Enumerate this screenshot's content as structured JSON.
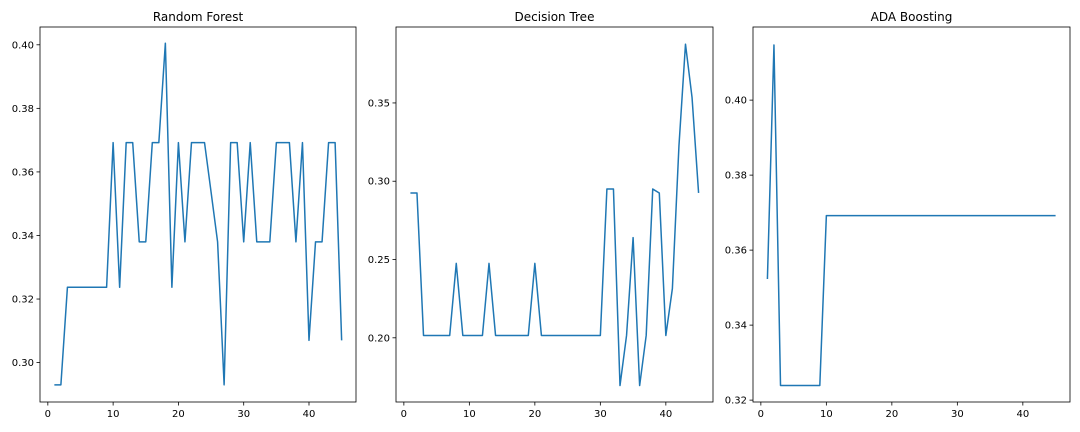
{
  "chart_data": [
    {
      "type": "line",
      "title": "Random Forest",
      "xlabel": "",
      "ylabel": "",
      "xlim": [
        -1.2,
        47.2
      ],
      "ylim": [
        0.2876,
        0.4056
      ],
      "xticks": [
        0,
        10,
        20,
        30,
        40
      ],
      "yticks": [
        0.3,
        0.32,
        0.34,
        0.36,
        0.38,
        0.4
      ],
      "ytick_labels": [
        "0.30",
        "0.32",
        "0.34",
        "0.36",
        "0.38",
        "0.40"
      ],
      "grid": false,
      "color": "#1f77b4",
      "x": [
        1,
        2,
        3,
        4,
        5,
        6,
        7,
        8,
        9,
        10,
        11,
        12,
        13,
        14,
        15,
        16,
        17,
        18,
        19,
        20,
        21,
        22,
        23,
        24,
        25,
        26,
        27,
        28,
        29,
        30,
        31,
        32,
        33,
        34,
        35,
        36,
        37,
        38,
        39,
        40,
        41,
        42,
        43,
        44,
        45
      ],
      "y": [
        0.293,
        0.293,
        0.3237,
        0.3237,
        0.3237,
        0.3237,
        0.3237,
        0.3237,
        0.3237,
        0.3692,
        0.3237,
        0.3692,
        0.3692,
        0.338,
        0.338,
        0.3692,
        0.3692,
        0.4005,
        0.3237,
        0.3692,
        0.338,
        0.3692,
        0.3692,
        0.3692,
        0.3537,
        0.338,
        0.293,
        0.3692,
        0.3692,
        0.338,
        0.3692,
        0.338,
        0.338,
        0.338,
        0.3692,
        0.3692,
        0.3692,
        0.338,
        0.3692,
        0.307,
        0.338,
        0.338,
        0.3692,
        0.3692,
        0.307
      ]
    },
    {
      "type": "line",
      "title": "Decision Tree",
      "xlabel": "",
      "ylabel": "",
      "xlim": [
        -1.2,
        47.2
      ],
      "ylim": [
        0.159,
        0.3985
      ],
      "xticks": [
        0,
        10,
        20,
        30,
        40
      ],
      "yticks": [
        0.2,
        0.25,
        0.3,
        0.35
      ],
      "ytick_labels": [
        "0.20",
        "0.25",
        "0.30",
        "0.35"
      ],
      "grid": false,
      "color": "#1f77b4",
      "x": [
        1,
        2,
        3,
        4,
        5,
        6,
        7,
        8,
        9,
        10,
        11,
        12,
        13,
        14,
        15,
        16,
        17,
        18,
        19,
        20,
        21,
        22,
        23,
        24,
        25,
        26,
        27,
        28,
        29,
        30,
        31,
        32,
        33,
        34,
        35,
        36,
        37,
        38,
        39,
        40,
        41,
        42,
        43,
        44,
        45
      ],
      "y": [
        0.2925,
        0.2925,
        0.2015,
        0.2015,
        0.2015,
        0.2015,
        0.2015,
        0.2475,
        0.2015,
        0.2015,
        0.2015,
        0.2015,
        0.2475,
        0.2015,
        0.2015,
        0.2015,
        0.2015,
        0.2015,
        0.2015,
        0.2475,
        0.2015,
        0.2015,
        0.2015,
        0.2015,
        0.2015,
        0.2015,
        0.2015,
        0.2015,
        0.2015,
        0.2015,
        0.295,
        0.295,
        0.1695,
        0.2015,
        0.264,
        0.1695,
        0.2015,
        0.295,
        0.2925,
        0.2015,
        0.2315,
        0.3225,
        0.3875,
        0.3535,
        0.2925
      ]
    },
    {
      "type": "line",
      "title": "ADA Boosting",
      "xlabel": "",
      "ylabel": "",
      "xlim": [
        -1.2,
        47.2
      ],
      "ylim": [
        0.3195,
        0.4195
      ],
      "xticks": [
        0,
        10,
        20,
        30,
        40
      ],
      "yticks": [
        0.32,
        0.34,
        0.36,
        0.38,
        0.4
      ],
      "ytick_labels": [
        "0.32",
        "0.34",
        "0.36",
        "0.38",
        "0.40"
      ],
      "grid": false,
      "color": "#1f77b4",
      "x": [
        1,
        2,
        3,
        4,
        5,
        6,
        7,
        8,
        9,
        10,
        11,
        12,
        13,
        14,
        15,
        16,
        17,
        18,
        19,
        20,
        21,
        22,
        23,
        24,
        25,
        26,
        27,
        28,
        29,
        30,
        31,
        32,
        33,
        34,
        35,
        36,
        37,
        38,
        39,
        40,
        41,
        42,
        43,
        44,
        45
      ],
      "y": [
        0.3523,
        0.4147,
        0.3239,
        0.3239,
        0.3239,
        0.3239,
        0.3239,
        0.3239,
        0.3239,
        0.3692,
        0.3692,
        0.3692,
        0.3692,
        0.3692,
        0.3692,
        0.3692,
        0.3692,
        0.3692,
        0.3692,
        0.3692,
        0.3692,
        0.3692,
        0.3692,
        0.3692,
        0.3692,
        0.3692,
        0.3692,
        0.3692,
        0.3692,
        0.3692,
        0.3692,
        0.3692,
        0.3692,
        0.3692,
        0.3692,
        0.3692,
        0.3692,
        0.3692,
        0.3692,
        0.3692,
        0.3692,
        0.3692,
        0.3692,
        0.3692,
        0.3692
      ]
    }
  ]
}
